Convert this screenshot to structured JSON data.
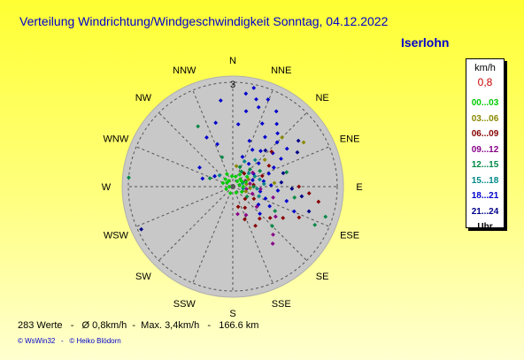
{
  "header": {
    "title": "Verteilung Windrichtung/Windgeschwindigkeit  Sonntag, 04.12.2022",
    "location": "Iserlohn"
  },
  "legend": {
    "unit": "km/h",
    "value": "0,8",
    "ranges": [
      {
        "label": "00...03",
        "color": "#00cc00"
      },
      {
        "label": "03...06",
        "color": "#888800"
      },
      {
        "label": "06...09",
        "color": "#880000"
      },
      {
        "label": "09...12",
        "color": "#880088"
      },
      {
        "label": "12...15",
        "color": "#008844"
      },
      {
        "label": "15...18",
        "color": "#008888"
      },
      {
        "label": "18...21",
        "color": "#0000cc"
      },
      {
        "label": "21...24",
        "color": "#000088"
      }
    ],
    "footer": "Uhr"
  },
  "footer": {
    "stats": "283 Werte   -   Ø 0,8km/h  -  Max. 3,4km/h   -   166.6 km",
    "credits": "© WsWin32   -   © Heiko Blödorn"
  },
  "chart_data": {
    "type": "scatter",
    "subtype": "wind-rose",
    "radial_label": "3",
    "radial_max": 3,
    "directions": [
      "N",
      "NNE",
      "NE",
      "ENE",
      "E",
      "ESE",
      "SE",
      "SSE",
      "S",
      "SSW",
      "SW",
      "WSW",
      "W",
      "WNW",
      "NW",
      "NNW"
    ],
    "points": [
      {
        "bearing": 15,
        "speed": 2.6,
        "color": "#0000cc"
      },
      {
        "bearing": 18,
        "speed": 2.4,
        "color": "#0000cc"
      },
      {
        "bearing": 12,
        "speed": 2.9,
        "color": "#0000cc"
      },
      {
        "bearing": 22,
        "speed": 2.7,
        "color": "#0000cc"
      },
      {
        "bearing": 30,
        "speed": 2.5,
        "color": "#0000cc"
      },
      {
        "bearing": 35,
        "speed": 2.2,
        "color": "#0000cc"
      },
      {
        "bearing": 40,
        "speed": 2.0,
        "color": "#0000cc"
      },
      {
        "bearing": 45,
        "speed": 1.8,
        "color": "#0000cc"
      },
      {
        "bearing": 8,
        "speed": 2.7,
        "color": "#0000cc"
      },
      {
        "bearing": 10,
        "speed": 2.2,
        "color": "#0000cc"
      },
      {
        "bearing": 25,
        "speed": 2.0,
        "color": "#0000cc"
      },
      {
        "bearing": 33,
        "speed": 1.7,
        "color": "#0000cc"
      },
      {
        "bearing": 50,
        "speed": 1.5,
        "color": "#0000cc"
      },
      {
        "bearing": 55,
        "speed": 1.9,
        "color": "#0000cc"
      },
      {
        "bearing": 60,
        "speed": 1.6,
        "color": "#0000cc"
      },
      {
        "bearing": 20,
        "speed": 1.4,
        "color": "#0000cc"
      },
      {
        "bearing": 28,
        "speed": 1.2,
        "color": "#0000cc"
      },
      {
        "bearing": 38,
        "speed": 1.3,
        "color": "#0000cc"
      },
      {
        "bearing": 65,
        "speed": 1.3,
        "color": "#0000cc"
      },
      {
        "bearing": 70,
        "speed": 1.1,
        "color": "#0000cc"
      },
      {
        "bearing": 5,
        "speed": 1.8,
        "color": "#0000cc"
      },
      {
        "bearing": 352,
        "speed": 2.5,
        "color": "#0000cc"
      },
      {
        "bearing": 345,
        "speed": 1.9,
        "color": "#0000cc"
      },
      {
        "bearing": 340,
        "speed": 1.3,
        "color": "#0000cc"
      },
      {
        "bearing": 332,
        "speed": 1.6,
        "color": "#0000cc"
      },
      {
        "bearing": 300,
        "speed": 1.1,
        "color": "#0000cc"
      },
      {
        "bearing": 285,
        "speed": 0.9,
        "color": "#0000cc"
      },
      {
        "bearing": 245,
        "speed": 2.9,
        "color": "#000088"
      },
      {
        "bearing": 300,
        "speed": 0.6,
        "color": "#0000cc"
      },
      {
        "bearing": 18,
        "speed": 0.9,
        "color": "#0000cc"
      },
      {
        "bearing": 35,
        "speed": 0.8,
        "color": "#0000cc"
      },
      {
        "bearing": 48,
        "speed": 1.0,
        "color": "#0000cc"
      },
      {
        "bearing": 58,
        "speed": 0.7,
        "color": "#0000cc"
      },
      {
        "bearing": 72,
        "speed": 0.6,
        "color": "#0000cc"
      },
      {
        "bearing": 80,
        "speed": 0.9,
        "color": "#0000cc"
      },
      {
        "bearing": 88,
        "speed": 1.1,
        "color": "#0000cc"
      },
      {
        "bearing": 95,
        "speed": 1.3,
        "color": "#0000cc"
      },
      {
        "bearing": 100,
        "speed": 0.8,
        "color": "#0000cc"
      },
      {
        "bearing": 110,
        "speed": 1.0,
        "color": "#0000cc"
      },
      {
        "bearing": 118,
        "speed": 1.2,
        "color": "#0000cc"
      },
      {
        "bearing": 105,
        "speed": 1.6,
        "color": "#0000cc"
      },
      {
        "bearing": 112,
        "speed": 1.9,
        "color": "#0000cc"
      },
      {
        "bearing": 125,
        "speed": 0.9,
        "color": "#0000cc"
      },
      {
        "bearing": 135,
        "speed": 1.1,
        "color": "#0000cc"
      },
      {
        "bearing": 55,
        "speed": 2.3,
        "color": "#000088"
      },
      {
        "bearing": 62,
        "speed": 2.1,
        "color": "#000088"
      },
      {
        "bearing": 42,
        "speed": 1.4,
        "color": "#000088"
      },
      {
        "bearing": 75,
        "speed": 1.5,
        "color": "#000088"
      },
      {
        "bearing": 85,
        "speed": 1.4,
        "color": "#000088"
      },
      {
        "bearing": 92,
        "speed": 1.7,
        "color": "#000088"
      },
      {
        "bearing": 98,
        "speed": 2.0,
        "color": "#000088"
      },
      {
        "bearing": 108,
        "speed": 2.3,
        "color": "#000088"
      },
      {
        "bearing": 115,
        "speed": 2.1,
        "color": "#880000"
      },
      {
        "bearing": 122,
        "speed": 1.7,
        "color": "#880000"
      },
      {
        "bearing": 130,
        "speed": 1.4,
        "color": "#880000"
      },
      {
        "bearing": 140,
        "speed": 1.2,
        "color": "#880000"
      },
      {
        "bearing": 150,
        "speed": 1.3,
        "color": "#880000"
      },
      {
        "bearing": 160,
        "speed": 1.0,
        "color": "#880000"
      },
      {
        "bearing": 100,
        "speed": 2.5,
        "color": "#880000"
      },
      {
        "bearing": 95,
        "speed": 2.2,
        "color": "#880000"
      },
      {
        "bearing": 90,
        "speed": 1.9,
        "color": "#880000"
      },
      {
        "bearing": 85,
        "speed": 0.6,
        "color": "#880000"
      },
      {
        "bearing": 70,
        "speed": 0.9,
        "color": "#880000"
      },
      {
        "bearing": 60,
        "speed": 1.2,
        "color": "#880000"
      },
      {
        "bearing": 48,
        "speed": 1.5,
        "color": "#880000"
      },
      {
        "bearing": 40,
        "speed": 0.5,
        "color": "#880000"
      },
      {
        "bearing": 120,
        "speed": 0.7,
        "color": "#880000"
      },
      {
        "bearing": 135,
        "speed": 0.5,
        "color": "#880000"
      },
      {
        "bearing": 150,
        "speed": 0.7,
        "color": "#880000"
      },
      {
        "bearing": 165,
        "speed": 0.6,
        "color": "#880000"
      },
      {
        "bearing": 145,
        "speed": 2.0,
        "color": "#880088"
      },
      {
        "bearing": 140,
        "speed": 1.8,
        "color": "#880088"
      },
      {
        "bearing": 130,
        "speed": 0.9,
        "color": "#880088"
      },
      {
        "bearing": 110,
        "speed": 0.6,
        "color": "#880088"
      },
      {
        "bearing": 100,
        "speed": 0.4,
        "color": "#880088"
      },
      {
        "bearing": 80,
        "speed": 0.5,
        "color": "#880088"
      },
      {
        "bearing": 65,
        "speed": 0.4,
        "color": "#880088"
      },
      {
        "bearing": 125,
        "speed": 1.5,
        "color": "#880088"
      },
      {
        "bearing": 105,
        "speed": 1.2,
        "color": "#880088"
      },
      {
        "bearing": 155,
        "speed": 0.9,
        "color": "#880088"
      },
      {
        "bearing": 170,
        "speed": 0.8,
        "color": "#880088"
      },
      {
        "bearing": 95,
        "speed": 0.8,
        "color": "#880088"
      },
      {
        "bearing": 55,
        "speed": 0.7,
        "color": "#880088"
      },
      {
        "bearing": 115,
        "speed": 2.6,
        "color": "#008844"
      },
      {
        "bearing": 108,
        "speed": 2.8,
        "color": "#008844"
      },
      {
        "bearing": 100,
        "speed": 1.8,
        "color": "#008844"
      },
      {
        "bearing": 120,
        "speed": 1.4,
        "color": "#008844"
      },
      {
        "bearing": 135,
        "speed": 1.6,
        "color": "#008844"
      },
      {
        "bearing": 75,
        "speed": 1.6,
        "color": "#008844"
      },
      {
        "bearing": 60,
        "speed": 0.9,
        "color": "#008844"
      },
      {
        "bearing": 45,
        "speed": 0.7,
        "color": "#008844"
      },
      {
        "bearing": 30,
        "speed": 0.5,
        "color": "#008844"
      },
      {
        "bearing": 20,
        "speed": 0.6,
        "color": "#008844"
      },
      {
        "bearing": 290,
        "speed": 0.7,
        "color": "#008844"
      },
      {
        "bearing": 275,
        "speed": 3.0,
        "color": "#008844"
      },
      {
        "bearing": 340,
        "speed": 0.9,
        "color": "#008844"
      },
      {
        "bearing": 330,
        "speed": 2.0,
        "color": "#008844"
      },
      {
        "bearing": 90,
        "speed": 0.6,
        "color": "#008844"
      },
      {
        "bearing": 125,
        "speed": 0.5,
        "color": "#008844"
      },
      {
        "bearing": 95,
        "speed": 0.7,
        "color": "#008888"
      },
      {
        "bearing": 85,
        "speed": 0.9,
        "color": "#008888"
      },
      {
        "bearing": 75,
        "speed": 0.8,
        "color": "#008888"
      },
      {
        "bearing": 65,
        "speed": 0.7,
        "color": "#008888"
      },
      {
        "bearing": 110,
        "speed": 0.8,
        "color": "#008888"
      },
      {
        "bearing": 70,
        "speed": 0.3,
        "color": "#008888"
      },
      {
        "bearing": 100,
        "speed": 0.3,
        "color": "#008888"
      },
      {
        "bearing": 50,
        "speed": 0.6,
        "color": "#008888"
      },
      {
        "bearing": 40,
        "speed": 1.0,
        "color": "#008888"
      },
      {
        "bearing": 25,
        "speed": 0.8,
        "color": "#008888"
      },
      {
        "bearing": 310,
        "speed": 0.5,
        "color": "#008888"
      },
      {
        "bearing": 65,
        "speed": 0.5,
        "color": "#888800"
      },
      {
        "bearing": 80,
        "speed": 0.4,
        "color": "#888800"
      },
      {
        "bearing": 95,
        "speed": 0.5,
        "color": "#888800"
      },
      {
        "bearing": 110,
        "speed": 0.4,
        "color": "#888800"
      },
      {
        "bearing": 50,
        "speed": 1.2,
        "color": "#888800"
      },
      {
        "bearing": 45,
        "speed": 2.0,
        "color": "#888800"
      },
      {
        "bearing": 58,
        "speed": 2.4,
        "color": "#888800"
      },
      {
        "bearing": 85,
        "speed": 1.2,
        "color": "#888800"
      },
      {
        "bearing": 10,
        "speed": 0.6,
        "color": "#888800"
      },
      {
        "bearing": 60,
        "speed": 0.3,
        "color": "#00cc00"
      },
      {
        "bearing": 75,
        "speed": 0.2,
        "color": "#00cc00"
      },
      {
        "bearing": 45,
        "speed": 0.3,
        "color": "#00cc00"
      },
      {
        "bearing": 30,
        "speed": 0.4,
        "color": "#00cc00"
      },
      {
        "bearing": 90,
        "speed": 0.3,
        "color": "#00cc00"
      },
      {
        "bearing": 120,
        "speed": 0.3,
        "color": "#00cc00"
      },
      {
        "bearing": 150,
        "speed": 0.2,
        "color": "#00cc00"
      },
      {
        "bearing": 200,
        "speed": 0.2,
        "color": "#00cc00"
      },
      {
        "bearing": 250,
        "speed": 0.2,
        "color": "#00cc00"
      },
      {
        "bearing": 290,
        "speed": 0.3,
        "color": "#00cc00"
      },
      {
        "bearing": 315,
        "speed": 0.3,
        "color": "#00cc00"
      },
      {
        "bearing": 335,
        "speed": 0.4,
        "color": "#00cc00"
      },
      {
        "bearing": 355,
        "speed": 0.3,
        "color": "#00cc00"
      },
      {
        "bearing": 15,
        "speed": 0.3,
        "color": "#00cc00"
      },
      {
        "bearing": 55,
        "speed": 0.5,
        "color": "#00cc00"
      },
      {
        "bearing": 305,
        "speed": 0.2,
        "color": "#00cc00"
      },
      {
        "bearing": 270,
        "speed": 0.1,
        "color": "#00cc00"
      },
      {
        "bearing": 325,
        "speed": 0.2,
        "color": "#00cc00"
      },
      {
        "bearing": 70,
        "speed": 0.4,
        "color": "#00cc00"
      },
      {
        "bearing": 40,
        "speed": 0.2,
        "color": "#00cc00"
      }
    ]
  }
}
